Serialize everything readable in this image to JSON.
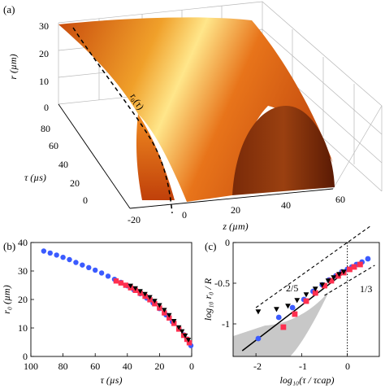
{
  "figure": {
    "panel_labels": [
      "(a)",
      "(b)",
      "(c)"
    ]
  },
  "chart_data": [
    {
      "panel": "(a)",
      "type": "surface3d",
      "colormap": [
        "#6b1a05",
        "#b83a08",
        "#e86a10",
        "#f7a52a",
        "#fff080"
      ],
      "z_axis_label": "r (µm)",
      "z_ticks": [
        "0",
        "10",
        "20",
        "30"
      ],
      "tau_axis_label": "τ (µs)",
      "tau_ticks": [
        "0",
        "20",
        "40",
        "60",
        "80"
      ],
      "x_axis_label": "z (µm)",
      "x_ticks": [
        "-20",
        "0",
        "20",
        "40",
        "60"
      ],
      "curve_label": "r₀(τ)",
      "xlim": [
        -20,
        60
      ],
      "taulim": [
        0,
        80
      ],
      "zlim": [
        0,
        35
      ]
    },
    {
      "panel": "(b)",
      "type": "scatter",
      "xlabel": "τ (µs)",
      "ylabel": "r₀ (µm)",
      "xlim": [
        100,
        0
      ],
      "ylim": [
        0,
        40
      ],
      "x_ticks": [
        "100",
        "80",
        "60",
        "40",
        "20",
        "0"
      ],
      "y_ticks": [
        "0",
        "10",
        "20",
        "30",
        "40"
      ],
      "series": [
        {
          "marker": "circle",
          "color": "#3b5bff",
          "x": [
            92,
            88,
            84,
            80,
            76,
            72,
            68,
            64,
            60,
            56,
            52,
            48,
            44,
            40,
            36,
            32,
            28,
            24,
            20,
            16,
            12,
            8,
            5,
            3,
            1.5,
            0.5
          ],
          "y": [
            37,
            36.3,
            35.6,
            34.8,
            34,
            33,
            32.1,
            31.2,
            30.3,
            29.3,
            28.2,
            27.1,
            26,
            24.8,
            23.4,
            22,
            20.5,
            18.8,
            16.8,
            14.6,
            12.2,
            9.7,
            7.6,
            6.1,
            4.8,
            3.8
          ]
        },
        {
          "marker": "square",
          "color": "#ff2f4f",
          "x": [
            47,
            44,
            41,
            38,
            35,
            32,
            29,
            26,
            23,
            20,
            17,
            14,
            11,
            8,
            5,
            3,
            1.5
          ],
          "y": [
            26.5,
            25.8,
            25,
            24.1,
            23.2,
            22.2,
            21.1,
            19.9,
            18.5,
            17,
            15.3,
            13.5,
            11.6,
            9.6,
            7.4,
            6,
            4.8
          ]
        },
        {
          "marker": "triangle-down",
          "color": "#000000",
          "x": [
            38,
            35,
            32,
            29,
            26,
            23,
            20,
            17,
            14,
            11,
            8,
            6,
            4,
            2
          ],
          "y": [
            24.8,
            23.9,
            22.9,
            21.9,
            20.8,
            19.5,
            18,
            16.3,
            14.5,
            12.4,
            10.2,
            8.8,
            7.3,
            5.8
          ]
        }
      ]
    },
    {
      "panel": "(c)",
      "type": "scatter",
      "xlabel": "log₁₀(τ / τcap)",
      "ylabel": "log₁₀ r₀ / R",
      "xlim": [
        -2.5,
        0.7
      ],
      "ylim": [
        -1.4,
        0
      ],
      "x_ticks": [
        "-2",
        "-1",
        "0"
      ],
      "y_ticks": [
        "-1",
        "-0.5",
        "0"
      ],
      "slope_labels": [
        "2/5",
        "1/3"
      ],
      "series": [
        {
          "marker": "circle",
          "color": "#3b5bff",
          "x": [
            -1.95,
            -1.5,
            -1.2,
            -0.95,
            -0.75,
            -0.55,
            -0.4,
            -0.25,
            -0.12,
            0.0,
            0.1,
            0.2,
            0.32,
            0.45
          ],
          "y": [
            -1.18,
            -0.92,
            -0.8,
            -0.7,
            -0.6,
            -0.52,
            -0.46,
            -0.41,
            -0.36,
            -0.33,
            -0.3,
            -0.27,
            -0.24,
            -0.2
          ]
        },
        {
          "marker": "square",
          "color": "#ff2f4f",
          "x": [
            -1.4,
            -1.15,
            -0.9,
            -0.7,
            -0.5,
            -0.35,
            -0.2,
            -0.08,
            0.05,
            0.15,
            0.28
          ],
          "y": [
            -1.04,
            -0.88,
            -0.72,
            -0.62,
            -0.53,
            -0.47,
            -0.41,
            -0.37,
            -0.33,
            -0.3,
            -0.27
          ]
        },
        {
          "marker": "triangle-down",
          "color": "#000000",
          "x": [
            -1.95,
            -1.55,
            -1.3,
            -1.1,
            -0.9,
            -0.7,
            -0.55,
            -0.42,
            -0.3,
            -0.18,
            -0.08
          ],
          "y": [
            -0.85,
            -0.82,
            -0.78,
            -0.71,
            -0.64,
            -0.57,
            -0.52,
            -0.47,
            -0.43,
            -0.39,
            -0.36
          ]
        }
      ],
      "fit_line": {
        "x": [
          -2.3,
          0.05
        ],
        "y": [
          -1.33,
          -0.32
        ]
      },
      "slope_lines": [
        {
          "label": "2/5",
          "x": [
            -2.0,
            0.5
          ],
          "y": [
            -0.8,
            0.2
          ]
        },
        {
          "label": "1/3",
          "x": [
            -0.5,
            0.6
          ],
          "y": [
            -0.65,
            -0.28
          ]
        }
      ],
      "vertical_ref_x": 0,
      "shaded_region": true
    }
  ]
}
